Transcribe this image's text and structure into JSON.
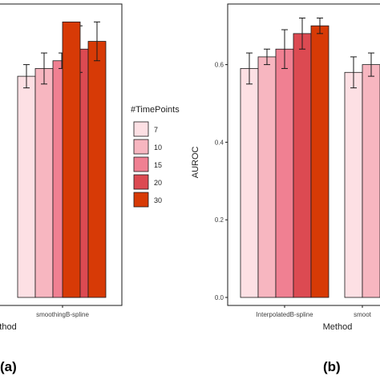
{
  "chart_data": [
    {
      "type": "bar",
      "panel_label": "(a)",
      "xlabel": "Method",
      "ylabel": "",
      "ylim": [
        0,
        0.75
      ],
      "grid": false,
      "categories": [
        "",
        "smoothingB-spline"
      ],
      "legend": {
        "title": "#TimePoints",
        "entries": [
          "7",
          "10",
          "15",
          "20",
          "30"
        ],
        "position": "right"
      },
      "series": [
        {
          "name": "7",
          "values": [
            null,
            0.57
          ],
          "errors": [
            null,
            0.03
          ]
        },
        {
          "name": "10",
          "values": [
            null,
            0.59
          ],
          "errors": [
            null,
            0.04
          ]
        },
        {
          "name": "15",
          "values": [
            null,
            0.61
          ],
          "errors": [
            null,
            0.02
          ]
        },
        {
          "name": "20",
          "values": [
            null,
            0.64
          ],
          "errors": [
            null,
            0.06
          ]
        },
        {
          "name": "30",
          "values": [
            0.71,
            0.66
          ],
          "errors": [
            null,
            0.05
          ]
        }
      ]
    },
    {
      "type": "bar",
      "panel_label": "(b)",
      "xlabel": "Method",
      "ylabel": "AUROC",
      "ylim": [
        0,
        0.75
      ],
      "yticks": [
        "0.0",
        "0.2",
        "0.4",
        "0.6"
      ],
      "grid": false,
      "categories": [
        "InterpolatedB-spline",
        "smoot"
      ],
      "series": [
        {
          "name": "7",
          "values": [
            0.59,
            0.58
          ],
          "errors": [
            0.04,
            0.04
          ]
        },
        {
          "name": "10",
          "values": [
            0.62,
            0.6
          ],
          "errors": [
            0.02,
            0.03
          ]
        },
        {
          "name": "15",
          "values": [
            0.64,
            null
          ],
          "errors": [
            0.05,
            null
          ]
        },
        {
          "name": "20",
          "values": [
            0.68,
            null
          ],
          "errors": [
            0.04,
            null
          ]
        },
        {
          "name": "30",
          "values": [
            0.7,
            null
          ],
          "errors": [
            0.02,
            null
          ]
        }
      ]
    }
  ],
  "colors": {
    "7": "#fde0e4",
    "10": "#f7b6c0",
    "15": "#f08092",
    "20": "#dc4a52",
    "30": "#d73a06",
    "axis": "#1a1a1a",
    "text": "#404040"
  }
}
